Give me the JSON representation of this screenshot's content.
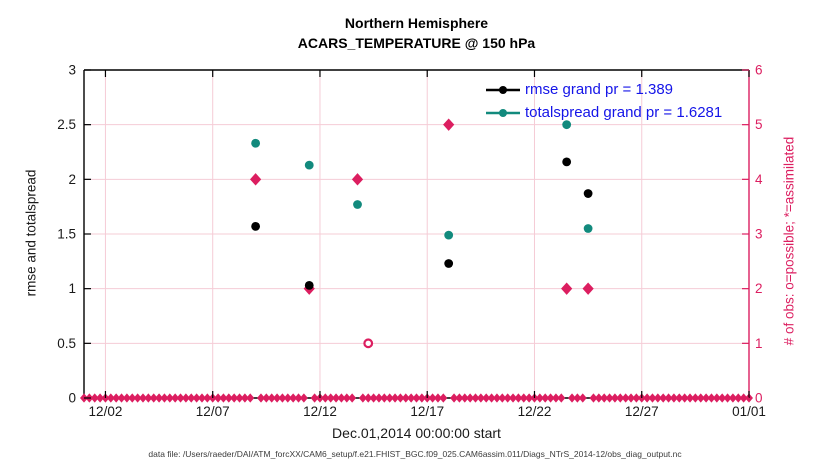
{
  "chart_data": {
    "type": "scatter",
    "title": "Northern Hemisphere",
    "subtitle": "ACARS_TEMPERATURE @ 150 hPa",
    "xlabel": "Dec.01,2014 00:00:00 start",
    "ylabel_left": "rmse and totalspread",
    "ylabel_right": "# of obs: o=possible; *=assimilated",
    "source_note": "data file: /Users/raeder/DAI/ATM_forcXX/CAM6_setup/f.e21.FHIST_BGC.f09_025.CAM6assim.011/Diags_NTrS_2014-12/obs_diag_output.nc",
    "x_axis": {
      "tick_labels": [
        "12/02",
        "12/07",
        "12/12",
        "12/17",
        "12/22",
        "12/27",
        "01/01"
      ],
      "tick_days": [
        1,
        6,
        11,
        16,
        21,
        26,
        31
      ],
      "range_days": [
        0,
        31
      ]
    },
    "y_axis_left": {
      "min": 0,
      "max": 3,
      "tick_labels": [
        "0",
        "0.5",
        "1",
        "1.5",
        "2",
        "2.5",
        "3"
      ],
      "tick_values": [
        0,
        0.5,
        1,
        1.5,
        2,
        2.5,
        3
      ]
    },
    "y_axis_right": {
      "min": 0,
      "max": 6,
      "tick_labels": [
        "0",
        "1",
        "2",
        "3",
        "4",
        "5",
        "6"
      ],
      "tick_values": [
        0,
        1,
        2,
        3,
        4,
        5,
        6
      ]
    },
    "legend_position": "top-right-inside",
    "grid": true,
    "series": [
      {
        "id": "rmse",
        "legend_label": "rmse grand pr = 1.389",
        "grand_pr": 1.389,
        "color": "#000000",
        "marker": "filled-circle",
        "y_axis": "left",
        "points": [
          {
            "day": 8.0,
            "value": 1.57
          },
          {
            "day": 10.5,
            "value": 1.03
          },
          {
            "day": 17.0,
            "value": 1.23
          },
          {
            "day": 22.5,
            "value": 2.16
          },
          {
            "day": 23.5,
            "value": 1.87
          }
        ]
      },
      {
        "id": "totalspread",
        "legend_label": "totalspread grand pr = 1.6281",
        "grand_pr": 1.6281,
        "color": "#128a7d",
        "marker": "filled-circle",
        "y_axis": "left",
        "points": [
          {
            "day": 8.0,
            "value": 2.33
          },
          {
            "day": 10.5,
            "value": 2.13
          },
          {
            "day": 12.75,
            "value": 1.77
          },
          {
            "day": 17.0,
            "value": 1.49
          },
          {
            "day": 22.5,
            "value": 2.5
          },
          {
            "day": 23.5,
            "value": 1.55
          }
        ]
      },
      {
        "id": "obs_assimilated",
        "legend_label": null,
        "color": "#dc1e60",
        "marker": "asterisk",
        "y_axis": "right",
        "points": [
          {
            "day": 8.0,
            "count": 4
          },
          {
            "day": 10.5,
            "count": 2
          },
          {
            "day": 12.75,
            "count": 4
          },
          {
            "day": 17.0,
            "count": 5
          },
          {
            "day": 22.5,
            "count": 2
          },
          {
            "day": 23.5,
            "count": 2
          }
        ]
      },
      {
        "id": "obs_possible",
        "legend_label": null,
        "color": "#dc1e60",
        "marker": "open-circle",
        "y_axis": "right",
        "points": [
          {
            "day": 13.25,
            "count": 1
          }
        ]
      }
    ],
    "obs_zero_row": {
      "value": 0,
      "step_days": 0.25,
      "gap_days": [
        8.0,
        10.5,
        12.75,
        17.0,
        22.5,
        23.5
      ]
    },
    "colors": {
      "rmse": "#000000",
      "totalspread": "#128a7d",
      "obs_pink": "#dc1e60",
      "legend_text": "#1414e8",
      "grid": "#f5ccd6",
      "axis_black": "#000000",
      "tick_text": "#1a1a1a"
    }
  }
}
